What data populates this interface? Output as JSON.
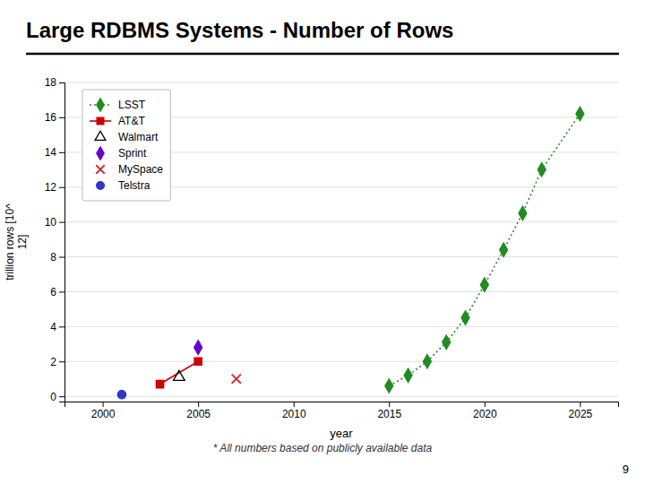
{
  "chart_data": {
    "type": "line",
    "title": "Large RDBMS Systems - Number of Rows",
    "subtitle": "* All numbers based on publicly available data",
    "annotations": [
      "9"
    ],
    "xlabel": "year",
    "ylabel": "trillion rows [10^\n12]",
    "xlim": [
      1998,
      2027
    ],
    "ylim": [
      -0.3,
      18
    ],
    "xticks": [
      2000,
      2005,
      2010,
      2015,
      2020,
      2025
    ],
    "yticks": [
      0,
      2,
      4,
      6,
      8,
      10,
      12,
      14,
      16,
      18
    ],
    "grid": true,
    "legend": "upper left",
    "series": [
      {
        "name": "LSST",
        "type": "line",
        "color": "#228B22",
        "marker": "diamond",
        "line_style": "dotted",
        "x": [
          2015,
          2016,
          2017,
          2018,
          2019,
          2020,
          2021,
          2022,
          2023,
          2025
        ],
        "values": [
          0.6,
          1.2,
          2.0,
          3.1,
          4.5,
          6.4,
          8.4,
          10.5,
          13.0,
          16.2
        ]
      },
      {
        "name": "AT&T",
        "type": "line",
        "color": "#cc0000",
        "marker": "square",
        "line_style": "solid",
        "x": [
          2003,
          2005
        ],
        "values": [
          0.7,
          2.0
        ]
      },
      {
        "name": "Walmart",
        "type": "scatter",
        "color": "#000000",
        "marker": "triangle-open",
        "x": [
          2004
        ],
        "values": [
          1.1
        ]
      },
      {
        "name": "Sprint",
        "type": "scatter",
        "color": "#6600cc",
        "marker": "diamond",
        "x": [
          2005
        ],
        "values": [
          2.8
        ]
      },
      {
        "name": "MySpace",
        "type": "scatter",
        "color": "#cc3333",
        "marker": "x",
        "x": [
          2007
        ],
        "values": [
          1.0
        ]
      },
      {
        "name": "Telstra",
        "type": "scatter",
        "color": "#3333cc",
        "marker": "circle",
        "x": [
          2001
        ],
        "values": [
          0.1
        ]
      }
    ]
  }
}
